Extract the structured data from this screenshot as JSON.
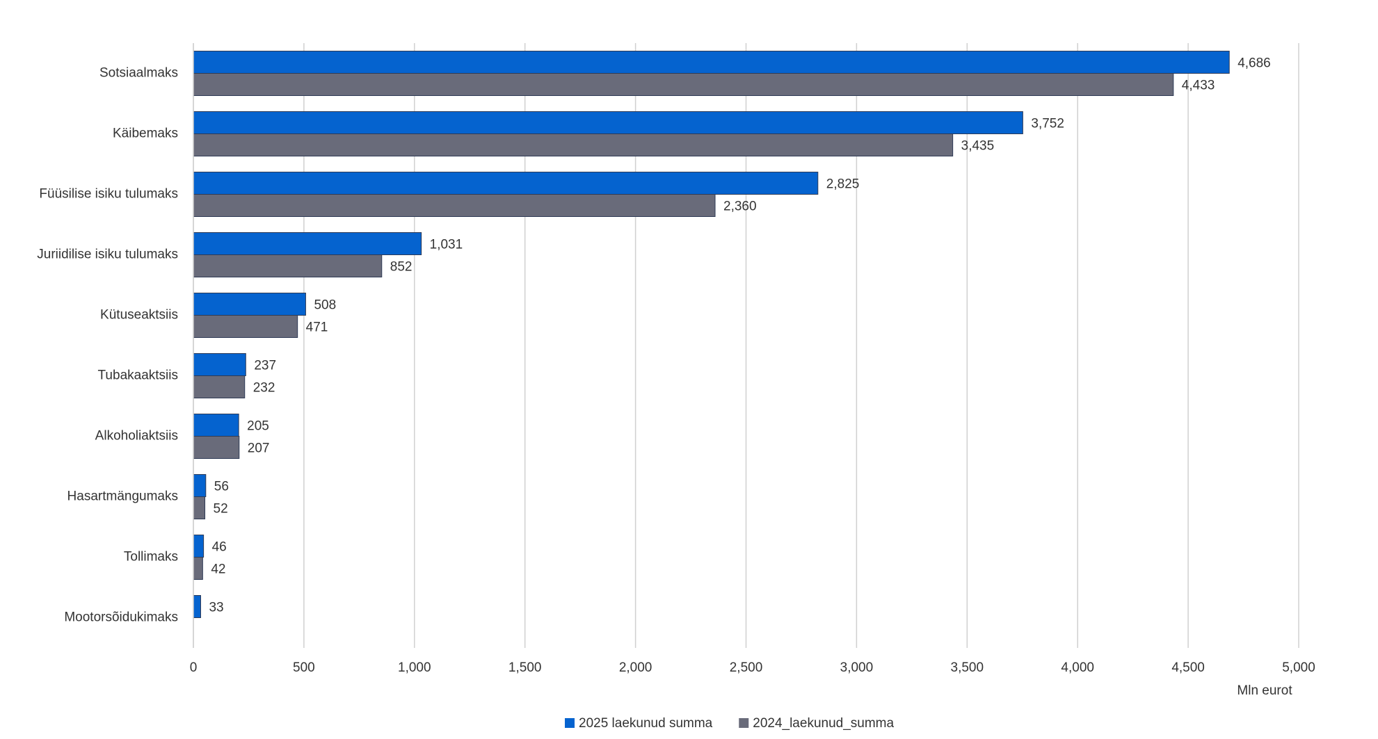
{
  "chart_data": {
    "type": "bar",
    "orientation": "horizontal",
    "categories": [
      "Sotsiaalmaks",
      "Käibemaks",
      "Füüsilise isiku tulumaks",
      "Juriidilise isiku tulumaks",
      "Kütuseaktsiis",
      "Tubakaaktsiis",
      "Alkoholiaktsiis",
      "Hasartmängumaks",
      "Tollimaks",
      "Mootorsõidukimaks"
    ],
    "series": [
      {
        "name": "2025 laekunud summa",
        "color": "#0563cf",
        "values": [
          4686,
          3752,
          2825,
          1031,
          508,
          237,
          205,
          56,
          46,
          33
        ],
        "value_labels": [
          "4,686",
          "3,752",
          "2,825",
          "1,031",
          "508",
          "237",
          "205",
          "56",
          "46",
          "33"
        ]
      },
      {
        "name": "2024_laekunud_summa",
        "color": "#696b7a",
        "values": [
          4433,
          3435,
          2360,
          852,
          471,
          232,
          207,
          52,
          42,
          null
        ],
        "value_labels": [
          "4,433",
          "3,435",
          "2,360",
          "852",
          "471",
          "232",
          "207",
          "52",
          "42",
          null
        ]
      }
    ],
    "x_label": "Mln eurot",
    "xlim": [
      0,
      5000
    ],
    "xticks": [
      0,
      500,
      {
        "value": 1000,
        "label": "1,000"
      },
      {
        "value": 1500,
        "label": "1,500"
      },
      {
        "value": 2000,
        "label": "2,000"
      },
      {
        "value": 2500,
        "label": "2,500"
      },
      {
        "value": 3000,
        "label": "3,000"
      },
      {
        "value": 3500,
        "label": "3,500"
      },
      {
        "value": 4000,
        "label": "4,000"
      },
      {
        "value": 4500,
        "label": "4,500"
      },
      {
        "value": 5000,
        "label": "5,000"
      }
    ],
    "grid": true,
    "legend": "bottom"
  }
}
